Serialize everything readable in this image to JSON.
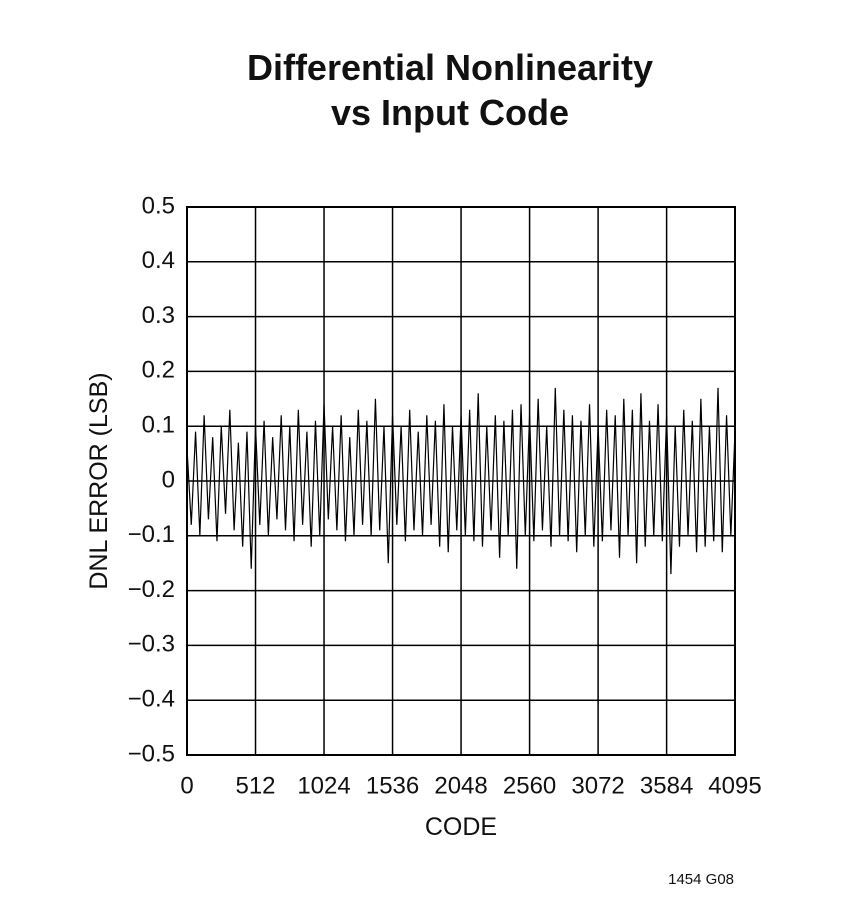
{
  "chart_data": {
    "type": "line",
    "title": "Differential Nonlinearity",
    "subtitle": "vs Input Code",
    "x_label": "CODE",
    "y_label": "DNL ERROR (LSB)",
    "annotation": "1454 G08",
    "xlim": [
      0,
      4095
    ],
    "xticks": [
      0,
      512,
      1024,
      1536,
      2048,
      2560,
      3072,
      3584,
      4095
    ],
    "ylim": [
      -0.5,
      0.5
    ],
    "yticks": [
      {
        "value": -0.5,
        "label": "−0.5"
      },
      {
        "value": -0.4,
        "label": "−0.4"
      },
      {
        "value": -0.3,
        "label": "−0.3"
      },
      {
        "value": -0.2,
        "label": "−0.2"
      },
      {
        "value": -0.1,
        "label": "−0.1"
      },
      0,
      0.1,
      0.2,
      0.3,
      0.4,
      0.5
    ],
    "grid": true,
    "color": "#000000",
    "x": [
      0,
      32,
      64,
      96,
      128,
      160,
      192,
      224,
      256,
      288,
      320,
      352,
      384,
      416,
      448,
      480,
      512,
      544,
      576,
      608,
      640,
      672,
      704,
      736,
      768,
      800,
      832,
      864,
      896,
      928,
      960,
      992,
      1024,
      1056,
      1088,
      1120,
      1152,
      1184,
      1216,
      1248,
      1280,
      1312,
      1344,
      1376,
      1408,
      1440,
      1472,
      1504,
      1536,
      1568,
      1600,
      1632,
      1664,
      1696,
      1728,
      1760,
      1792,
      1824,
      1856,
      1888,
      1920,
      1952,
      1984,
      2016,
      2048,
      2080,
      2112,
      2144,
      2176,
      2208,
      2240,
      2272,
      2304,
      2336,
      2368,
      2400,
      2432,
      2464,
      2496,
      2528,
      2560,
      2592,
      2624,
      2656,
      2688,
      2720,
      2752,
      2784,
      2816,
      2848,
      2880,
      2912,
      2944,
      2976,
      3008,
      3040,
      3072,
      3104,
      3136,
      3168,
      3200,
      3232,
      3264,
      3296,
      3328,
      3360,
      3392,
      3424,
      3456,
      3488,
      3520,
      3552,
      3584,
      3616,
      3648,
      3680,
      3712,
      3744,
      3776,
      3808,
      3840,
      3872,
      3904,
      3936,
      3968,
      4000,
      4032,
      4064,
      4095
    ],
    "values": [
      0.06,
      -0.08,
      0.09,
      -0.1,
      0.12,
      -0.07,
      0.08,
      -0.11,
      0.1,
      -0.06,
      0.13,
      -0.09,
      0.07,
      -0.12,
      0.09,
      -0.16,
      0.1,
      -0.08,
      0.11,
      -0.1,
      0.08,
      -0.07,
      0.12,
      -0.09,
      0.1,
      -0.11,
      0.13,
      -0.08,
      0.09,
      -0.12,
      0.11,
      -0.1,
      0.14,
      -0.07,
      0.1,
      -0.09,
      0.12,
      -0.11,
      0.08,
      -0.1,
      0.13,
      -0.08,
      0.11,
      -0.1,
      0.15,
      -0.09,
      0.1,
      -0.15,
      0.12,
      -0.08,
      0.1,
      -0.11,
      0.13,
      -0.09,
      0.09,
      -0.1,
      0.12,
      -0.08,
      0.11,
      -0.12,
      0.14,
      -0.13,
      0.1,
      -0.09,
      0.12,
      -0.1,
      0.13,
      -0.11,
      0.16,
      -0.12,
      0.1,
      -0.09,
      0.12,
      -0.14,
      0.11,
      -0.1,
      0.13,
      -0.16,
      0.14,
      -0.1,
      0.12,
      -0.11,
      0.15,
      -0.09,
      0.1,
      -0.12,
      0.17,
      -0.1,
      0.13,
      -0.11,
      0.12,
      -0.13,
      0.11,
      -0.1,
      0.14,
      -0.12,
      0.1,
      -0.11,
      0.13,
      -0.09,
      0.12,
      -0.14,
      0.15,
      -0.1,
      0.13,
      -0.15,
      0.16,
      -0.12,
      0.11,
      -0.1,
      0.14,
      -0.11,
      0.12,
      -0.17,
      0.1,
      -0.12,
      0.13,
      -0.1,
      0.11,
      -0.13,
      0.15,
      -0.12,
      0.1,
      -0.11,
      0.17,
      -0.13,
      0.12,
      -0.1,
      0.09
    ]
  }
}
